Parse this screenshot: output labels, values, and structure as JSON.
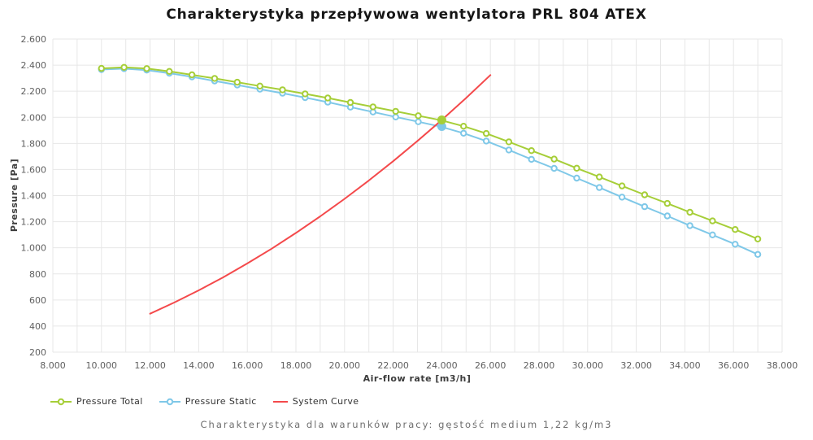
{
  "title": "Charakterystyka przepływowa wentylatora PRL 804 ATEX",
  "subtitle": "Charakterystyka dla warunków pracy: gęstość medium 1,22 kg/m3",
  "legend": {
    "items": [
      {
        "label": "Pressure Total",
        "color": "#a6ce38",
        "marker": true
      },
      {
        "label": "Pressure Static",
        "color": "#7fc8e8",
        "marker": true
      },
      {
        "label": "System Curve",
        "color": "#f4494b",
        "marker": false
      }
    ]
  },
  "chart_data": {
    "type": "line",
    "title": "Charakterystyka przepływowa wentylatora PRL 804 ATEX",
    "xlabel": "Air-flow rate [m3/h]",
    "ylabel": "Pressure [Pa]",
    "xlim": [
      8000,
      38000
    ],
    "ylim": [
      200,
      2600
    ],
    "x_grid_step": 1000,
    "x_label_step": 2000,
    "y_grid_step": 200,
    "grid": true,
    "grid_color": "#e7e7e7",
    "tick_label_color": "#5f5f5f",
    "axis_title_color": "#3c3c3c",
    "number_format": "thousands-dot",
    "legend_position": "bottom-left",
    "series": [
      {
        "name": "Pressure Total",
        "color": "#a6ce38",
        "marker": "hollow-circle",
        "x": [
          10000,
          10931,
          11862,
          12793,
          13724,
          14655,
          15586,
          16517,
          17448,
          18379,
          19310,
          20241,
          21172,
          22103,
          23034,
          23966,
          24897,
          25828,
          26759,
          27690,
          28621,
          29552,
          30483,
          31414,
          32345,
          33276,
          34207,
          35138,
          36069,
          37000
        ],
        "values": [
          2375,
          2383,
          2374,
          2352,
          2326,
          2298,
          2269,
          2240,
          2211,
          2180,
          2148,
          2114,
          2080,
          2046,
          2012,
          1978,
          1932,
          1876,
          1812,
          1745,
          1680,
          1610,
          1543,
          1474,
          1406,
          1340,
          1272,
          1206,
          1140,
          1068
        ]
      },
      {
        "name": "Pressure Static",
        "color": "#7fc8e8",
        "marker": "hollow-circle",
        "x": [
          10000,
          10931,
          11862,
          12793,
          13724,
          14655,
          15586,
          16517,
          17448,
          18379,
          19310,
          20241,
          21172,
          22103,
          23034,
          23966,
          24897,
          25828,
          26759,
          27690,
          28621,
          29552,
          30483,
          31414,
          32345,
          33276,
          34207,
          35138,
          36069,
          37000
        ],
        "values": [
          2366,
          2373,
          2362,
          2338,
          2310,
          2279,
          2248,
          2216,
          2185,
          2151,
          2116,
          2078,
          2041,
          2003,
          1966,
          1928,
          1878,
          1818,
          1750,
          1678,
          1609,
          1534,
          1462,
          1388,
          1315,
          1244,
          1170,
          1099,
          1027,
          949
        ]
      },
      {
        "name": "System Curve",
        "color": "#f4494b",
        "marker": "none",
        "x": [
          12000,
          13000,
          14000,
          15000,
          16000,
          17000,
          18000,
          19000,
          20000,
          21000,
          22000,
          23000,
          24000,
          25000,
          26000
        ],
        "values": [
          495,
          581,
          674,
          773,
          880,
          993,
          1114,
          1241,
          1375,
          1516,
          1664,
          1819,
          1980,
          2148,
          2324
        ]
      }
    ],
    "duty_point": {
      "x": 24000,
      "pressure_total": 1980,
      "pressure_static": 1930
    }
  }
}
